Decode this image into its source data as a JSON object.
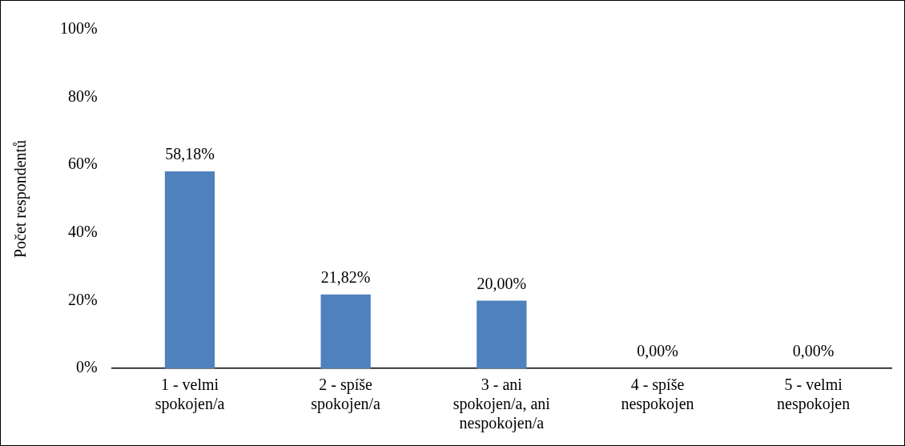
{
  "chart_data": {
    "type": "bar",
    "ylabel": "Počet respondentů",
    "categories": [
      "1 - velmi spokojen/a",
      "2 - spíše spokojen/a",
      "3 - ani spokojen/a, ani nespokojen/a",
      "4 - spíše nespokojen",
      "5 - velmi nespokojen"
    ],
    "values": [
      58.18,
      21.82,
      20.0,
      0,
      0
    ],
    "value_labels": [
      "58,18%",
      "21,82%",
      "20,00%",
      "0,00%",
      "0,00%"
    ],
    "color": "#4f81bd",
    "ylim": [
      0,
      100
    ],
    "yticks": [
      {
        "value": 0,
        "label": "0%"
      },
      {
        "value": 20,
        "label": "20%"
      },
      {
        "value": 40,
        "label": "40%"
      },
      {
        "value": 60,
        "label": "60%"
      },
      {
        "value": 80,
        "label": "80%"
      },
      {
        "value": 100,
        "label": "100%"
      }
    ],
    "grid": false,
    "legend": false
  }
}
